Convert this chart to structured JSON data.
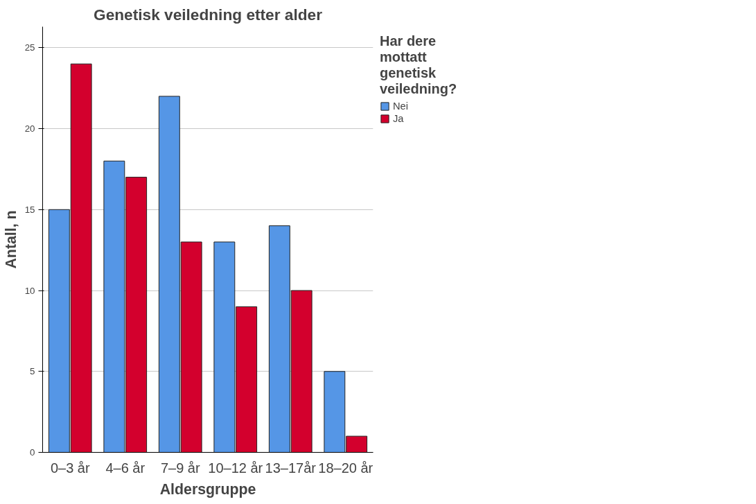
{
  "chart_data": {
    "type": "bar",
    "title": "Genetisk veiledning etter alder",
    "xlabel": "Aldersgruppe",
    "ylabel": "Antall, n",
    "legend_title": "Har dere mottatt genetisk veiledning?",
    "categories": [
      "0–3 år",
      "4–6 år",
      "7–9 år",
      "10–12 år",
      "13–17år",
      "18–20 år"
    ],
    "series": [
      {
        "name": "Nei",
        "color": "#5596e6",
        "values": [
          15,
          18,
          22,
          13,
          14,
          5
        ]
      },
      {
        "name": "Ja",
        "color": "#d3002d",
        "values": [
          24,
          17,
          13,
          9,
          10,
          1
        ]
      }
    ],
    "ylim": [
      0,
      26.3
    ],
    "yticks": [
      0,
      5,
      10,
      15,
      20,
      25
    ],
    "grid": "y",
    "legend": "top right"
  }
}
